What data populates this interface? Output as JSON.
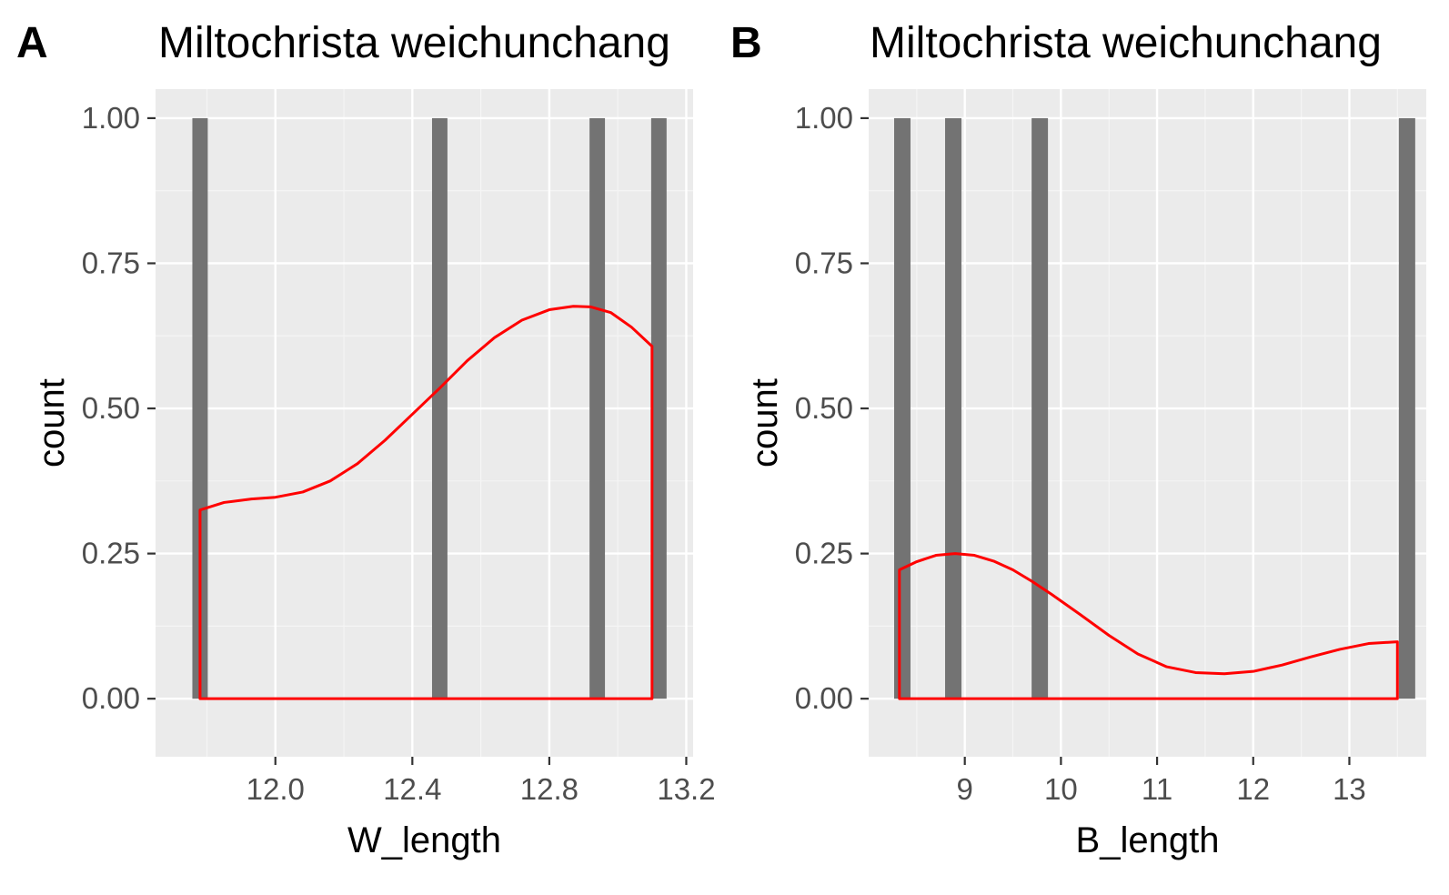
{
  "chart_data": [
    {
      "panel": "A",
      "title": "Miltochrista weichunchang",
      "type": "bar",
      "overlay": "density (red outline)",
      "xlabel": "W_length",
      "ylabel": "count",
      "xlim": [
        11.65,
        13.22
      ],
      "ylim": [
        -0.1,
        1.05
      ],
      "xticks": [
        12.0,
        12.4,
        12.8,
        13.2
      ],
      "xtick_labels": [
        "12.0",
        "12.4",
        "12.8",
        "13.2"
      ],
      "yticks": [
        0,
        0.25,
        0.5,
        0.75,
        1
      ],
      "ytick_labels": [
        "0.00",
        "0.25",
        "0.50",
        "0.75",
        "1.00"
      ],
      "bar_width": 0.045,
      "bars": [
        {
          "x": 11.78,
          "count": 1
        },
        {
          "x": 12.48,
          "count": 1
        },
        {
          "x": 12.94,
          "count": 1
        },
        {
          "x": 13.12,
          "count": 1
        }
      ],
      "density": {
        "x": [
          11.78,
          11.85,
          11.93,
          12.0,
          12.08,
          12.16,
          12.24,
          12.32,
          12.4,
          12.48,
          12.56,
          12.64,
          12.72,
          12.8,
          12.87,
          12.92,
          12.98,
          13.04,
          13.1
        ],
        "y": [
          0.325,
          0.338,
          0.344,
          0.347,
          0.356,
          0.375,
          0.405,
          0.445,
          0.49,
          0.535,
          0.582,
          0.622,
          0.652,
          0.67,
          0.676,
          0.675,
          0.665,
          0.64,
          0.607
        ]
      },
      "grid": true,
      "legend": "none"
    },
    {
      "panel": "B",
      "title": "Miltochrista weichunchang",
      "type": "bar",
      "overlay": "density (red outline)",
      "xlabel": "B_length",
      "ylabel": "count",
      "xlim": [
        8.0,
        13.8
      ],
      "ylim": [
        -0.1,
        1.05
      ],
      "xticks": [
        9,
        10,
        11,
        12,
        13
      ],
      "xtick_labels": [
        "9",
        "10",
        "11",
        "12",
        "13"
      ],
      "yticks": [
        0,
        0.25,
        0.5,
        0.75,
        1
      ],
      "ytick_labels": [
        "0.00",
        "0.25",
        "0.50",
        "0.75",
        "1.00"
      ],
      "bar_width": 0.17,
      "bars": [
        {
          "x": 8.35,
          "count": 1
        },
        {
          "x": 8.88,
          "count": 1
        },
        {
          "x": 9.78,
          "count": 1
        },
        {
          "x": 13.6,
          "count": 1
        }
      ],
      "density": {
        "x": [
          8.32,
          8.5,
          8.7,
          8.9,
          9.1,
          9.3,
          9.5,
          9.7,
          9.9,
          10.2,
          10.5,
          10.8,
          11.1,
          11.4,
          11.7,
          12.0,
          12.3,
          12.6,
          12.9,
          13.2,
          13.5
        ],
        "y": [
          0.222,
          0.236,
          0.247,
          0.25,
          0.247,
          0.237,
          0.222,
          0.202,
          0.18,
          0.145,
          0.109,
          0.077,
          0.055,
          0.045,
          0.043,
          0.047,
          0.058,
          0.072,
          0.085,
          0.095,
          0.098
        ]
      },
      "grid": true,
      "legend": "none"
    }
  ],
  "colors": {
    "panel_background": "#ebebeb",
    "grid_major": "#ffffff",
    "grid_minor": "#f5f5f5",
    "bar_fill": "#737373",
    "density_line": "#ff0000",
    "tick_text": "#4d4d4d",
    "tick_mark": "#333333"
  }
}
